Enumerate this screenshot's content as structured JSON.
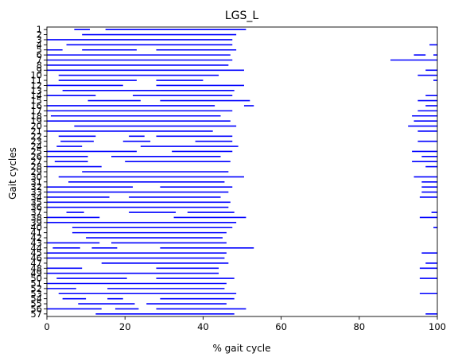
{
  "chart_data": {
    "type": "bar",
    "subtype": "horizontal-segments",
    "title": "LGS_L",
    "xlabel": "% gait cycle",
    "ylabel": "Gait cycles",
    "xlim": [
      0,
      100
    ],
    "xticks": [
      0,
      20,
      40,
      60,
      80,
      100
    ],
    "y_categories": [
      "1",
      "2",
      "3",
      "4",
      "5",
      "6",
      "7",
      "8",
      "9",
      "10",
      "11",
      "12",
      "13",
      "14",
      "15",
      "16",
      "17",
      "18",
      "19",
      "20",
      "21",
      "22",
      "23",
      "24",
      "25",
      "26",
      "27",
      "28",
      "29",
      "30",
      "31",
      "32",
      "33",
      "34",
      "35",
      "36",
      "37",
      "38",
      "39",
      "40",
      "41",
      "42",
      "43",
      "44",
      "45",
      "46",
      "47",
      "48",
      "49",
      "50",
      "51",
      "52",
      "53",
      "54",
      "55",
      "56",
      "57"
    ],
    "color": "#0000ff",
    "grid": false,
    "rows": [
      {
        "cycle": "1",
        "segments": [
          [
            7,
            11
          ],
          [
            15,
            51
          ]
        ]
      },
      {
        "cycle": "2",
        "segments": [
          [
            9,
            48.5
          ]
        ]
      },
      {
        "cycle": "3",
        "segments": [
          [
            0,
            47.5
          ]
        ]
      },
      {
        "cycle": "4",
        "segments": [
          [
            5,
            47.5
          ],
          [
            98,
            100
          ]
        ]
      },
      {
        "cycle": "5",
        "segments": [
          [
            0,
            4
          ],
          [
            9,
            23
          ],
          [
            28,
            48.5
          ]
        ]
      },
      {
        "cycle": "6",
        "segments": [
          [
            0,
            47
          ],
          [
            94,
            97
          ],
          [
            99,
            100
          ]
        ]
      },
      {
        "cycle": "7",
        "segments": [
          [
            0,
            47.5
          ],
          [
            88,
            100
          ]
        ]
      },
      {
        "cycle": "8",
        "segments": [
          [
            0,
            46.5
          ]
        ]
      },
      {
        "cycle": "9",
        "segments": [
          [
            0,
            50.5
          ],
          [
            97,
            100
          ]
        ]
      },
      {
        "cycle": "10",
        "segments": [
          [
            3,
            44
          ],
          [
            95,
            100
          ]
        ]
      },
      {
        "cycle": "11",
        "segments": [
          [
            3,
            23
          ],
          [
            28,
            40
          ],
          [
            99,
            100
          ]
        ]
      },
      {
        "cycle": "12",
        "segments": [
          [
            0,
            19.5
          ],
          [
            28,
            50.5
          ]
        ]
      },
      {
        "cycle": "13",
        "segments": [
          [
            4,
            48
          ]
        ]
      },
      {
        "cycle": "14",
        "segments": [
          [
            0,
            12.5
          ],
          [
            22,
            47.5
          ],
          [
            97,
            100
          ]
        ]
      },
      {
        "cycle": "15",
        "segments": [
          [
            10.5,
            24
          ],
          [
            29,
            52
          ],
          [
            95,
            100
          ]
        ]
      },
      {
        "cycle": "16",
        "segments": [
          [
            0,
            43
          ],
          [
            50.5,
            53
          ],
          [
            97,
            100
          ]
        ]
      },
      {
        "cycle": "17",
        "segments": [
          [
            0,
            47.5
          ],
          [
            95,
            100
          ]
        ]
      },
      {
        "cycle": "18",
        "segments": [
          [
            1,
            44.5
          ],
          [
            93.5,
            100
          ]
        ]
      },
      {
        "cycle": "19",
        "segments": [
          [
            0,
            47
          ],
          [
            94,
            100
          ]
        ]
      },
      {
        "cycle": "20",
        "segments": [
          [
            7,
            48.5
          ],
          [
            92.5,
            100
          ]
        ]
      },
      {
        "cycle": "21",
        "segments": [
          [
            0,
            42.5
          ],
          [
            95,
            100
          ]
        ]
      },
      {
        "cycle": "22",
        "segments": [
          [
            3,
            12.5
          ],
          [
            21,
            25
          ],
          [
            28,
            47.5
          ]
        ]
      },
      {
        "cycle": "23",
        "segments": [
          [
            3.5,
            12
          ],
          [
            19.5,
            26.5
          ],
          [
            38,
            47.5
          ],
          [
            95,
            100
          ]
        ]
      },
      {
        "cycle": "24",
        "segments": [
          [
            2.5,
            9
          ],
          [
            24,
            49
          ]
        ]
      },
      {
        "cycle": "25",
        "segments": [
          [
            0,
            23
          ],
          [
            32,
            47.5
          ],
          [
            93.5,
            100
          ]
        ]
      },
      {
        "cycle": "26",
        "segments": [
          [
            0,
            10.5
          ],
          [
            16.5,
            44.5
          ],
          [
            96,
            100
          ]
        ]
      },
      {
        "cycle": "27",
        "segments": [
          [
            2,
            10.5
          ],
          [
            20,
            47
          ],
          [
            93.5,
            100
          ]
        ]
      },
      {
        "cycle": "28",
        "segments": [
          [
            0,
            14
          ],
          [
            97,
            100
          ]
        ]
      },
      {
        "cycle": "29",
        "segments": [
          [
            9,
            46.5
          ]
        ]
      },
      {
        "cycle": "30",
        "segments": [
          [
            3,
            50.5
          ],
          [
            94,
            100
          ]
        ]
      },
      {
        "cycle": "31",
        "segments": [
          [
            5.5,
            45.5
          ],
          [
            96,
            100
          ]
        ]
      },
      {
        "cycle": "32",
        "segments": [
          [
            0,
            22
          ],
          [
            29,
            47.5
          ],
          [
            96,
            100
          ]
        ]
      },
      {
        "cycle": "33",
        "segments": [
          [
            0,
            46.5
          ],
          [
            96,
            100
          ]
        ]
      },
      {
        "cycle": "34",
        "segments": [
          [
            0,
            16
          ],
          [
            21,
            44.5
          ],
          [
            95.5,
            100
          ]
        ]
      },
      {
        "cycle": "35",
        "segments": [
          [
            0,
            47
          ]
        ]
      },
      {
        "cycle": "36",
        "segments": [
          [
            0,
            46.5
          ]
        ]
      },
      {
        "cycle": "37",
        "segments": [
          [
            5,
            9.5
          ],
          [
            21,
            33
          ],
          [
            36,
            48
          ],
          [
            98.5,
            100
          ]
        ]
      },
      {
        "cycle": "38",
        "segments": [
          [
            0,
            13.5
          ],
          [
            32.5,
            51
          ],
          [
            95.5,
            100
          ]
        ]
      },
      {
        "cycle": "39",
        "segments": [
          [
            0,
            48.5
          ]
        ]
      },
      {
        "cycle": "40",
        "segments": [
          [
            6.5,
            47.5
          ],
          [
            99,
            100
          ]
        ]
      },
      {
        "cycle": "41",
        "segments": [
          [
            6.5,
            46
          ]
        ]
      },
      {
        "cycle": "42",
        "segments": [
          [
            10,
            45
          ]
        ]
      },
      {
        "cycle": "43",
        "segments": [
          [
            0,
            13.5
          ],
          [
            16.5,
            46
          ]
        ]
      },
      {
        "cycle": "44",
        "segments": [
          [
            1.5,
            8.5
          ],
          [
            11.5,
            18
          ],
          [
            29,
            53
          ]
        ]
      },
      {
        "cycle": "45",
        "segments": [
          [
            0,
            46
          ],
          [
            96,
            100
          ]
        ]
      },
      {
        "cycle": "46",
        "segments": [
          [
            0,
            45.5
          ]
        ]
      },
      {
        "cycle": "47",
        "segments": [
          [
            14,
            46.5
          ],
          [
            97,
            100
          ]
        ]
      },
      {
        "cycle": "48",
        "segments": [
          [
            0,
            9
          ],
          [
            28,
            44
          ],
          [
            95.5,
            100
          ]
        ]
      },
      {
        "cycle": "49",
        "segments": [
          [
            0,
            44
          ]
        ]
      },
      {
        "cycle": "50",
        "segments": [
          [
            2.5,
            20.5
          ],
          [
            28,
            48
          ],
          [
            95.5,
            100
          ]
        ]
      },
      {
        "cycle": "51",
        "segments": [
          [
            0,
            46
          ]
        ]
      },
      {
        "cycle": "52",
        "segments": [
          [
            0,
            7.5
          ],
          [
            15.5,
            45.5
          ]
        ]
      },
      {
        "cycle": "53",
        "segments": [
          [
            3,
            48.5
          ],
          [
            95.5,
            100
          ]
        ]
      },
      {
        "cycle": "54",
        "segments": [
          [
            4,
            10
          ],
          [
            15.5,
            19.5
          ],
          [
            29,
            48
          ]
        ]
      },
      {
        "cycle": "55",
        "segments": [
          [
            8,
            22.5
          ],
          [
            25.5,
            46
          ]
        ]
      },
      {
        "cycle": "56",
        "segments": [
          [
            0,
            14
          ],
          [
            17.5,
            23.5
          ],
          [
            28,
            51
          ]
        ]
      },
      {
        "cycle": "57",
        "segments": [
          [
            12.5,
            48
          ],
          [
            97,
            100
          ]
        ]
      }
    ]
  }
}
